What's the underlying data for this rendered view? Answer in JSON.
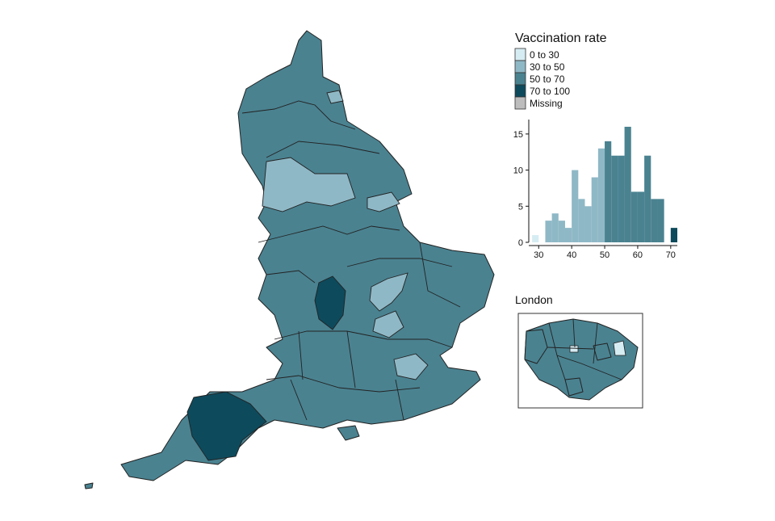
{
  "title": "Vaccination rate",
  "legend": [
    {
      "label": "0 to 30",
      "color": "#d6ecf3"
    },
    {
      "label": "30 to 50",
      "color": "#8fb8c6"
    },
    {
      "label": "50 to 70",
      "color": "#4a8290"
    },
    {
      "label": "70 to 100",
      "color": "#0d4a5c"
    },
    {
      "label": "Missing",
      "color": "#bdbdbd"
    }
  ],
  "chart_data": {
    "type": "histogram",
    "bins": [
      28,
      30,
      32,
      34,
      36,
      38,
      40,
      42,
      44,
      46,
      48,
      50,
      52,
      54,
      56,
      58,
      60,
      62,
      64,
      66,
      68,
      70,
      72
    ],
    "counts": [
      1,
      0,
      3,
      4,
      3,
      2,
      10,
      6,
      5,
      9,
      13,
      14,
      12,
      12,
      16,
      7,
      7,
      12,
      6,
      6,
      0,
      2
    ],
    "colors": [
      "#d6ecf3",
      "#8fb8c6",
      "#8fb8c6",
      "#8fb8c6",
      "#8fb8c6",
      "#8fb8c6",
      "#8fb8c6",
      "#8fb8c6",
      "#8fb8c6",
      "#8fb8c6",
      "#8fb8c6",
      "#4a8290",
      "#4a8290",
      "#4a8290",
      "#4a8290",
      "#4a8290",
      "#4a8290",
      "#4a8290",
      "#4a8290",
      "#4a8290",
      "#4a8290",
      "#0d4a5c"
    ],
    "xlim": [
      27,
      72
    ],
    "ylim": [
      0,
      17
    ],
    "xticks": [
      30,
      40,
      50,
      60,
      70
    ],
    "yticks": [
      0,
      5,
      10,
      15
    ]
  },
  "inset": {
    "title": "London"
  }
}
